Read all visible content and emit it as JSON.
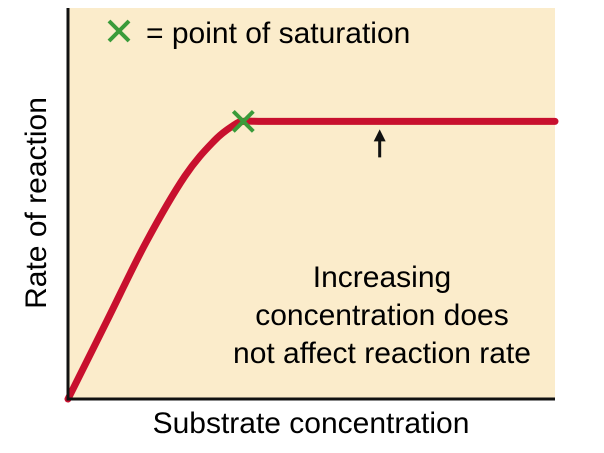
{
  "chart_data": {
    "type": "line",
    "title": "",
    "xlabel": "Substrate concentration",
    "ylabel": "Rate of reaction",
    "xlim": [
      0,
      1
    ],
    "ylim": [
      0,
      1
    ],
    "grid": false,
    "ticks_shown": false,
    "series": [
      {
        "x": [
          0,
          0.08,
          0.16,
          0.24,
          0.3,
          0.34,
          0.36,
          0.4,
          0.5,
          0.6,
          0.7,
          0.8,
          0.9,
          1.0
        ],
        "y": [
          0,
          0.2,
          0.4,
          0.57,
          0.66,
          0.7,
          0.71,
          0.71,
          0.71,
          0.71,
          0.71,
          0.71,
          0.71,
          0.71
        ]
      }
    ],
    "saturation_point": {
      "x": 0.36,
      "y": 0.71
    },
    "legend": {
      "symbol_label": "= point of saturation",
      "placement": "top-left"
    },
    "annotation": {
      "lines": [
        "Increasing",
        "concentration does",
        "not affect reaction rate"
      ],
      "arrow_points_to": {
        "x": 0.64,
        "y": 0.71
      }
    }
  },
  "colors": {
    "background": "#fbeccb",
    "curve": "#c8102e",
    "marker": "#3a9b3a",
    "axis": "#111111"
  }
}
